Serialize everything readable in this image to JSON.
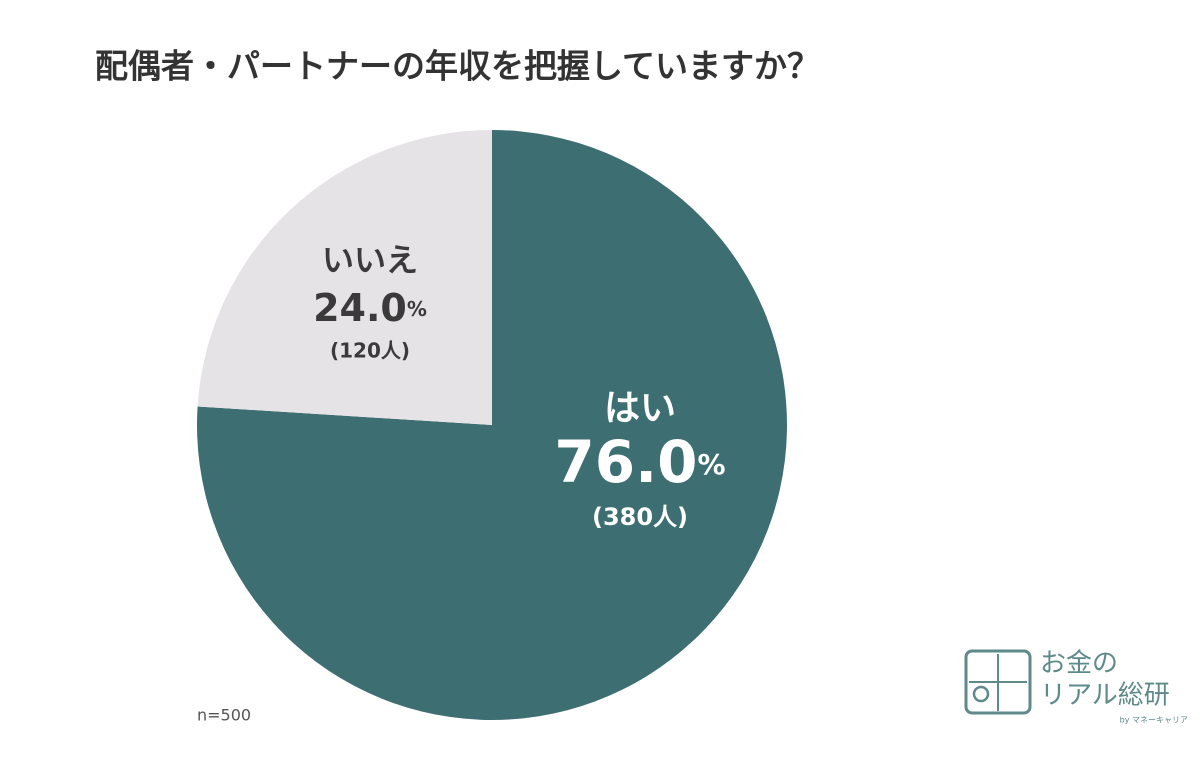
{
  "chart_data": {
    "type": "pie",
    "title": "配偶者・パートナーの年収を把握していますか？",
    "categories": [
      "はい",
      "いいえ"
    ],
    "values": [
      76.0,
      24.0
    ],
    "value_labels": [
      "76.0%",
      "24.0%"
    ],
    "count_labels": [
      "(380人)",
      "(120人)"
    ],
    "colors": [
      "#3d6e72",
      "#e6e3e6"
    ],
    "label_colors": [
      "#ffffff",
      "#3a3a3a"
    ],
    "note": "n=500"
  },
  "logo": {
    "line1": "お金の",
    "line2": "リアル総研",
    "byline": "by マネーキャリア"
  }
}
